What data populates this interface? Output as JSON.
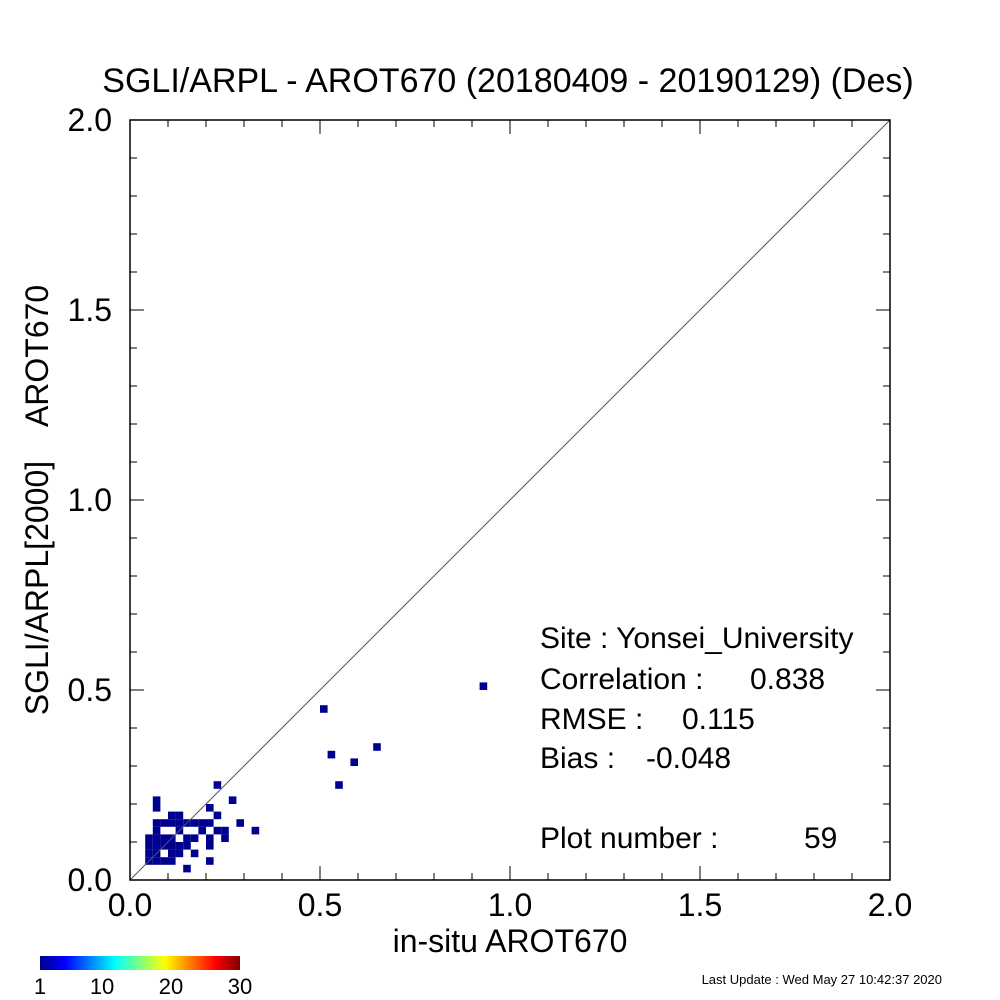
{
  "chart_data": {
    "type": "heatmap",
    "title": "SGLI/ARPL - AROT670 (20180409 - 20190129) (Des)",
    "xlabel": "in-situ AROT670",
    "ylabel": "SGLI/ARPL[2000]    AROT670",
    "xlim": [
      0.0,
      2.0
    ],
    "ylim": [
      0.0,
      2.0
    ],
    "x_tick_labels": [
      "0.0",
      "0.5",
      "1.0",
      "1.5",
      "2.0"
    ],
    "y_tick_labels": [
      "0.0",
      "0.5",
      "1.0",
      "1.5",
      "2.0"
    ],
    "grid": false,
    "one_to_one_line": true,
    "cell_size": 0.02,
    "cells": [
      [
        0.06,
        0.2
      ],
      [
        0.06,
        0.18
      ],
      [
        0.06,
        0.14
      ],
      [
        0.08,
        0.14
      ],
      [
        0.1,
        0.14
      ],
      [
        0.12,
        0.14
      ],
      [
        0.14,
        0.14
      ],
      [
        0.16,
        0.14
      ],
      [
        0.18,
        0.14
      ],
      [
        0.2,
        0.14
      ],
      [
        0.1,
        0.16
      ],
      [
        0.12,
        0.16
      ],
      [
        0.06,
        0.12
      ],
      [
        0.12,
        0.12
      ],
      [
        0.18,
        0.12
      ],
      [
        0.22,
        0.12
      ],
      [
        0.24,
        0.12
      ],
      [
        0.32,
        0.12
      ],
      [
        0.04,
        0.1
      ],
      [
        0.06,
        0.1
      ],
      [
        0.08,
        0.1
      ],
      [
        0.1,
        0.1
      ],
      [
        0.14,
        0.1
      ],
      [
        0.16,
        0.1
      ],
      [
        0.2,
        0.1
      ],
      [
        0.24,
        0.1
      ],
      [
        0.04,
        0.08
      ],
      [
        0.06,
        0.08
      ],
      [
        0.08,
        0.08
      ],
      [
        0.1,
        0.08
      ],
      [
        0.12,
        0.08
      ],
      [
        0.14,
        0.08
      ],
      [
        0.2,
        0.08
      ],
      [
        0.04,
        0.06
      ],
      [
        0.06,
        0.06
      ],
      [
        0.1,
        0.06
      ],
      [
        0.12,
        0.06
      ],
      [
        0.16,
        0.06
      ],
      [
        0.04,
        0.04
      ],
      [
        0.06,
        0.04
      ],
      [
        0.08,
        0.04
      ],
      [
        0.1,
        0.04
      ],
      [
        0.2,
        0.04
      ],
      [
        0.14,
        0.02
      ],
      [
        0.22,
        0.24
      ],
      [
        0.26,
        0.2
      ],
      [
        0.2,
        0.18
      ],
      [
        0.22,
        0.16
      ],
      [
        0.28,
        0.14
      ],
      [
        0.5,
        0.44
      ],
      [
        0.52,
        0.32
      ],
      [
        0.54,
        0.24
      ],
      [
        0.58,
        0.3
      ],
      [
        0.64,
        0.34
      ],
      [
        0.92,
        0.5
      ]
    ],
    "cell_color": "#00008f",
    "stats": {
      "site": "Site : Yonsei_University",
      "correlation_label": "Correlation :",
      "correlation_value": "0.838",
      "rmse_label": "RMSE :",
      "rmse_value": "0.115",
      "bias_label": "Bias :",
      "bias_value": "-0.048",
      "plot_number_label": "Plot number :",
      "plot_number_value": "59"
    },
    "colorbar": {
      "colors": [
        "#00008f",
        "#0000ff",
        "#007fff",
        "#00ffff",
        "#7fff7f",
        "#ffff00",
        "#ff7f00",
        "#ff0000",
        "#7f0000"
      ],
      "tick_labels": [
        "1",
        "10",
        "20",
        "30"
      ],
      "range": [
        1,
        30
      ]
    }
  },
  "footer": {
    "last_update": "Last Update : Wed May 27 10:42:37 2020"
  }
}
